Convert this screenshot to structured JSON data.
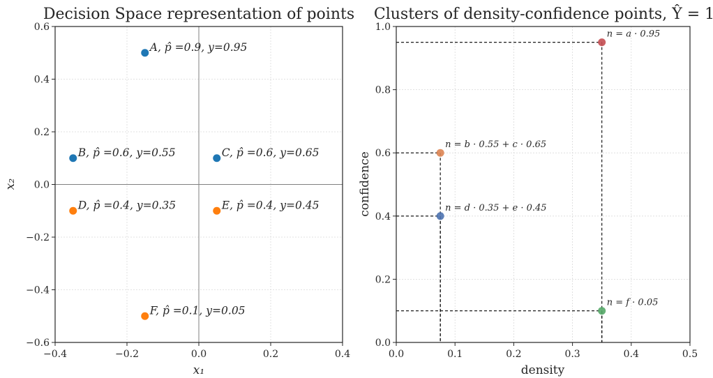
{
  "chart_data": [
    {
      "type": "scatter",
      "title": "Decision Space representation of points",
      "xlabel": "x₁",
      "ylabel": "x₂",
      "xlim": [
        -0.4,
        0.4
      ],
      "ylim": [
        -0.6,
        0.6
      ],
      "xticks": [
        -0.4,
        -0.2,
        0.0,
        0.2,
        0.4
      ],
      "xtick_labels": [
        "−0.4",
        "−0.2",
        "0.0",
        "0.2",
        "0.4"
      ],
      "yticks": [
        -0.6,
        -0.4,
        -0.2,
        0.0,
        0.2,
        0.4,
        0.6
      ],
      "ytick_labels": [
        "−0.6",
        "−0.4",
        "−0.2",
        "0.0",
        "0.2",
        "0.4",
        "0.6"
      ],
      "grid": true,
      "zero_lines": true,
      "points": [
        {
          "x": -0.15,
          "y": 0.5,
          "color": "#1f77b4",
          "label": "A, p̂ =0.9, y=0.95"
        },
        {
          "x": -0.35,
          "y": 0.1,
          "color": "#1f77b4",
          "label": "B, p̂ =0.6, y=0.55"
        },
        {
          "x": 0.05,
          "y": 0.1,
          "color": "#1f77b4",
          "label": "C, p̂ =0.6, y=0.65"
        },
        {
          "x": -0.35,
          "y": -0.1,
          "color": "#ff7f0e",
          "label": "D, p̂ =0.4, y=0.35"
        },
        {
          "x": 0.05,
          "y": -0.1,
          "color": "#ff7f0e",
          "label": "E, p̂ =0.4, y=0.45"
        },
        {
          "x": -0.15,
          "y": -0.5,
          "color": "#ff7f0e",
          "label": "F, p̂ =0.1, y=0.05"
        }
      ]
    },
    {
      "type": "scatter",
      "title": "Clusters of density-confidence points, Ŷ = 1",
      "xlabel": "density",
      "ylabel": "confidence",
      "xlim": [
        0.0,
        0.5
      ],
      "ylim": [
        0.0,
        1.0
      ],
      "xticks": [
        0.0,
        0.1,
        0.2,
        0.3,
        0.4,
        0.5
      ],
      "xtick_labels": [
        "0.0",
        "0.1",
        "0.2",
        "0.3",
        "0.4",
        "0.5"
      ],
      "yticks": [
        0.0,
        0.2,
        0.4,
        0.6,
        0.8,
        1.0
      ],
      "ytick_labels": [
        "0.0",
        "0.2",
        "0.4",
        "0.6",
        "0.8",
        "1.0"
      ],
      "grid": true,
      "points": [
        {
          "x": 0.35,
          "y": 0.95,
          "color": "#c44e52",
          "label": "n = a · 0.95"
        },
        {
          "x": 0.075,
          "y": 0.6,
          "color": "#dd8452",
          "label": "n = b · 0.55 + c · 0.65"
        },
        {
          "x": 0.075,
          "y": 0.4,
          "color": "#4c72b0",
          "label": "n = d · 0.35 + e · 0.45"
        },
        {
          "x": 0.35,
          "y": 0.1,
          "color": "#55a868",
          "label": "n = f · 0.05"
        }
      ],
      "guide_lines": "dashed"
    }
  ]
}
